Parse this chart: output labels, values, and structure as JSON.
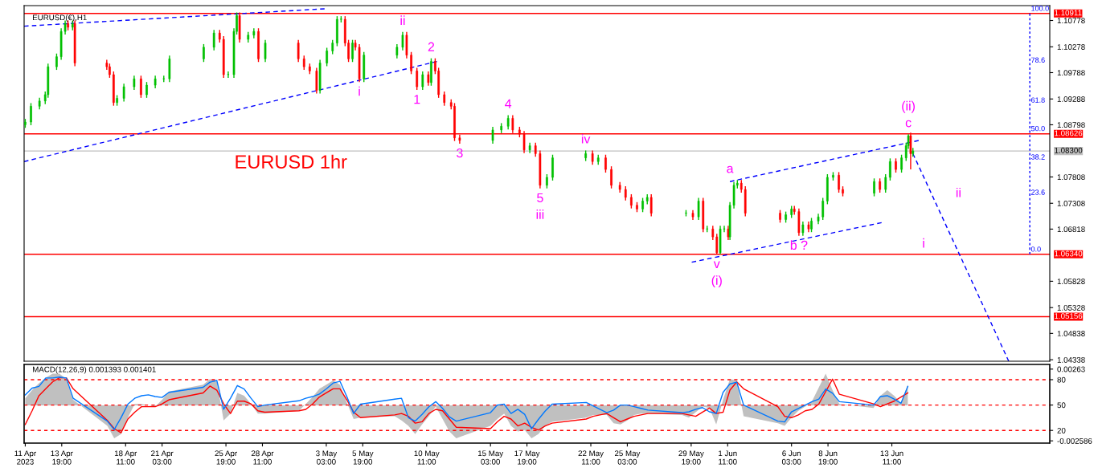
{
  "chart_data": [
    {
      "type": "candlestick",
      "title": "EURUSD(€),H1",
      "tick_labels": "y",
      "xlim": [
        "2023-04-11T01:00",
        "2023-06-25T00:00"
      ],
      "ylim": [
        1.0431,
        1.1106
      ],
      "yticks": [
        1.10778,
        1.10278,
        1.09788,
        1.09288,
        1.08798,
        1.07808,
        1.07308,
        1.06818,
        1.05828,
        1.05328,
        1.04838,
        1.04338
      ],
      "x": [
        "2023-04-11T03:00",
        "2023-04-11T13:00",
        "2023-04-12T04:00",
        "2023-04-12T14:00",
        "2023-04-12T19:00",
        "2023-04-13T10:00",
        "2023-04-13T18:00",
        "2023-04-14T01:00",
        "2023-04-14T06:00",
        "2023-04-14T14:00",
        "2023-04-14T18:00",
        "2023-04-17T02:00",
        "2023-04-17T07:00",
        "2023-04-17T14:00",
        "2023-04-17T20:00",
        "2023-04-18T08:00",
        "2023-04-19T02:00",
        "2023-04-19T14:00",
        "2023-04-20T00:00",
        "2023-04-20T15:00",
        "2023-04-21T06:00",
        "2023-04-21T16:00",
        "2023-04-24T04:00",
        "2023-04-24T22:00",
        "2023-04-25T08:00",
        "2023-04-25T15:00",
        "2023-04-25T23:00",
        "2023-04-26T09:00",
        "2023-04-26T14:00",
        "2023-04-26T19:00",
        "2023-04-27T10:00",
        "2023-04-27T20:00",
        "2023-04-28T04:00",
        "2023-04-28T16:00",
        "2023-05-01T02:00",
        "2023-05-01T12:00",
        "2023-05-01T22:00",
        "2023-05-02T10:00",
        "2023-05-02T16:00",
        "2023-05-03T04:00",
        "2023-05-03T14:00",
        "2023-05-03T22:00",
        "2023-05-04T05:00",
        "2023-05-04T12:00",
        "2023-05-04T18:00",
        "2023-05-05T01:00",
        "2023-05-05T06:00",
        "2023-05-05T13:00",
        "2023-05-05T21:00",
        "2023-05-08T07:00",
        "2023-05-08T17:00",
        "2023-05-09T00:00",
        "2023-05-09T08:00",
        "2023-05-09T18:00",
        "2023-05-10T04:00",
        "2023-05-10T14:00",
        "2023-05-10T19:00",
        "2023-05-11T02:00",
        "2023-05-11T08:00",
        "2023-05-11T18:00",
        "2023-05-12T06:00",
        "2023-05-12T12:00",
        "2023-05-12T21:00",
        "2023-05-15T07:00",
        "2023-05-15T22:00",
        "2023-05-16T10:00",
        "2023-05-16T18:00",
        "2023-05-17T06:00",
        "2023-05-17T14:00",
        "2023-05-18T00:00",
        "2023-05-18T10:00",
        "2023-05-18T18:00",
        "2023-05-19T06:00",
        "2023-05-19T16:00",
        "2023-05-22T02:00",
        "2023-05-22T14:00",
        "2023-05-23T00:00",
        "2023-05-23T13:00",
        "2023-05-23T23:00",
        "2023-05-24T14:00",
        "2023-05-25T00:00",
        "2023-05-25T10:00",
        "2023-05-25T20:00",
        "2023-05-26T06:00",
        "2023-05-26T14:00",
        "2023-05-26T21:00",
        "2023-05-29T10:00",
        "2023-05-29T22:00",
        "2023-05-30T08:00",
        "2023-05-30T16:00",
        "2023-05-30T23:00",
        "2023-05-31T09:00",
        "2023-05-31T16:00",
        "2023-05-31T22:00",
        "2023-06-01T05:00",
        "2023-06-01T12:00",
        "2023-06-01T15:00",
        "2023-06-01T22:00",
        "2023-06-02T04:00",
        "2023-06-02T11:00",
        "2023-06-02T18:00",
        "2023-06-05T07:00",
        "2023-06-05T17:00",
        "2023-06-06T03:00",
        "2023-06-06T08:00",
        "2023-06-06T16:00",
        "2023-06-06T23:00",
        "2023-06-07T09:00",
        "2023-06-07T14:00",
        "2023-06-08T02:00",
        "2023-06-08T10:00",
        "2023-06-08T18:00",
        "2023-06-09T04:00",
        "2023-06-09T14:00",
        "2023-06-09T21:00",
        "2023-06-12T04:00",
        "2023-06-12T14:00",
        "2023-06-13T00:00",
        "2023-06-13T08:00",
        "2023-06-13T18:00",
        "2023-06-14T04:00",
        "2023-06-14T12:00",
        "2023-06-14T16:00",
        "2023-06-14T20:00",
        "2023-06-15T00:00"
      ],
      "ohlc": [
        [
          1.088,
          1.0891,
          1.0874,
          1.0885
        ],
        [
          1.0885,
          1.0921,
          1.0879,
          1.0915
        ],
        [
          1.0915,
          1.0931,
          1.0909,
          1.0925
        ],
        [
          1.0925,
          1.0943,
          1.0919,
          1.0937
        ],
        [
          1.0937,
          1.0996,
          1.0931,
          1.099
        ],
        [
          1.099,
          1.1015,
          1.0984,
          1.1009
        ],
        [
          1.1009,
          1.1063,
          1.1003,
          1.1057
        ],
        [
          1.1057,
          1.1078,
          1.1051,
          1.1072
        ],
        [
          1.1072,
          1.1078,
          1.1059,
          1.1065
        ],
        [
          1.1065,
          1.1078,
          1.1059,
          1.1072
        ],
        [
          1.1072,
          1.1078,
          1.0991,
          1.0997
        ],
        [
          1.0997,
          1.1003,
          1.0984,
          1.099
        ],
        [
          1.099,
          1.0996,
          1.0969,
          1.0975
        ],
        [
          1.0975,
          1.0981,
          1.0916,
          1.0922
        ],
        [
          1.0922,
          1.0936,
          1.0916,
          1.093
        ],
        [
          1.093,
          1.0958,
          1.0924,
          1.0952
        ],
        [
          1.0952,
          1.0973,
          1.0946,
          1.0967
        ],
        [
          1.0967,
          1.0973,
          1.0931,
          1.0937
        ],
        [
          1.0937,
          1.0961,
          1.0931,
          1.0955
        ],
        [
          1.0955,
          1.0973,
          1.0949,
          1.0967
        ],
        [
          1.0967,
          1.0973,
          1.0961,
          1.0967
        ],
        [
          1.0967,
          1.1011,
          1.0961,
          1.1005
        ],
        [
          1.1005,
          1.1033,
          1.0999,
          1.1027
        ],
        [
          1.1027,
          1.106,
          1.1021,
          1.1054
        ],
        [
          1.1054,
          1.106,
          1.1036,
          1.1042
        ],
        [
          1.1042,
          1.1048,
          1.0969,
          1.0975
        ],
        [
          1.0975,
          1.0981,
          1.0969,
          1.0975
        ],
        [
          1.0975,
          1.1063,
          1.0969,
          1.1057
        ],
        [
          1.1057,
          1.1093,
          1.1051,
          1.1087
        ],
        [
          1.1087,
          1.1093,
          1.1036,
          1.1042
        ],
        [
          1.1042,
          1.1056,
          1.1036,
          1.105
        ],
        [
          1.105,
          1.1063,
          1.1044,
          1.1057
        ],
        [
          1.1057,
          1.1063,
          1.0999,
          1.1005
        ],
        [
          1.1005,
          1.1041,
          1.0999,
          1.1035
        ],
        [
          1.1035,
          1.1041,
          1.0999,
          1.1005
        ],
        [
          1.1005,
          1.1011,
          1.0984,
          1.099
        ],
        [
          1.099,
          1.0996,
          1.0976,
          1.0982
        ],
        [
          1.0982,
          1.0988,
          1.0939,
          1.0945
        ],
        [
          1.0945,
          1.1003,
          1.0939,
          1.0997
        ],
        [
          1.0997,
          1.1026,
          1.0991,
          1.102
        ],
        [
          1.102,
          1.1041,
          1.1014,
          1.1035
        ],
        [
          1.1035,
          1.1086,
          1.1029,
          1.108
        ],
        [
          1.108,
          1.1086,
          1.1074,
          1.108
        ],
        [
          1.108,
          1.1086,
          1.1029,
          1.1035
        ],
        [
          1.1035,
          1.1041,
          1.0999,
          1.1005
        ],
        [
          1.1005,
          1.1041,
          1.0999,
          1.1035
        ],
        [
          1.1035,
          1.1041,
          1.1021,
          1.1027
        ],
        [
          1.1027,
          1.1033,
          1.0961,
          1.0967
        ],
        [
          1.0967,
          1.1018,
          1.0961,
          1.1012
        ],
        [
          1.1012,
          1.1033,
          1.1006,
          1.1027
        ],
        [
          1.1027,
          1.1056,
          1.1021,
          1.105
        ],
        [
          1.105,
          1.1056,
          1.1006,
          1.1012
        ],
        [
          1.1012,
          1.1018,
          1.0976,
          1.0982
        ],
        [
          1.0982,
          1.0988,
          1.0946,
          1.0952
        ],
        [
          1.0952,
          1.0981,
          1.0946,
          1.0975
        ],
        [
          1.0975,
          1.0981,
          1.0954,
          1.096
        ],
        [
          1.096,
          1.1006,
          1.0954,
          1.1
        ],
        [
          1.1,
          1.1006,
          1.0976,
          1.0982
        ],
        [
          1.0982,
          1.0988,
          1.0931,
          1.0937
        ],
        [
          1.0937,
          1.0943,
          1.0916,
          1.0922
        ],
        [
          1.0922,
          1.0928,
          1.0909,
          1.0915
        ],
        [
          1.0915,
          1.0921,
          1.0849,
          1.0855
        ],
        [
          1.0855,
          1.0861,
          1.0844,
          1.085
        ],
        [
          1.085,
          1.0876,
          1.0844,
          1.087
        ],
        [
          1.087,
          1.0883,
          1.0864,
          1.0877
        ],
        [
          1.0877,
          1.0898,
          1.0871,
          1.0892
        ],
        [
          1.0892,
          1.0898,
          1.0864,
          1.087
        ],
        [
          1.087,
          1.0876,
          1.0856,
          1.0862
        ],
        [
          1.0862,
          1.0868,
          1.0826,
          1.0832
        ],
        [
          1.0832,
          1.0846,
          1.0826,
          1.084
        ],
        [
          1.084,
          1.0846,
          1.0819,
          1.0825
        ],
        [
          1.0825,
          1.0831,
          1.0759,
          1.0765
        ],
        [
          1.0765,
          1.0786,
          1.0759,
          1.078
        ],
        [
          1.078,
          1.0823,
          1.0774,
          1.0817
        ],
        [
          1.0817,
          1.0831,
          1.0811,
          1.0825
        ],
        [
          1.0825,
          1.0831,
          1.0804,
          1.081
        ],
        [
          1.081,
          1.0823,
          1.0804,
          1.0817
        ],
        [
          1.0817,
          1.0823,
          1.0789,
          1.0795
        ],
        [
          1.0795,
          1.0801,
          1.0759,
          1.0765
        ],
        [
          1.0765,
          1.0771,
          1.0751,
          1.0757
        ],
        [
          1.0757,
          1.0763,
          1.0736,
          1.0742
        ],
        [
          1.0742,
          1.0748,
          1.0721,
          1.0727
        ],
        [
          1.0727,
          1.0733,
          1.0714,
          1.072
        ],
        [
          1.072,
          1.0741,
          1.0714,
          1.0735
        ],
        [
          1.0735,
          1.0748,
          1.0729,
          1.0742
        ],
        [
          1.0742,
          1.0748,
          1.0706,
          1.0712
        ],
        [
          1.0712,
          1.0718,
          1.0706,
          1.0712
        ],
        [
          1.0712,
          1.0718,
          1.0699,
          1.0705
        ],
        [
          1.0705,
          1.0741,
          1.0699,
          1.0735
        ],
        [
          1.0735,
          1.0741,
          1.0676,
          1.0682
        ],
        [
          1.0682,
          1.0688,
          1.0676,
          1.0682
        ],
        [
          1.0682,
          1.0688,
          1.0661,
          1.0667
        ],
        [
          1.0667,
          1.0673,
          1.0634,
          1.0637
        ],
        [
          1.0637,
          1.0688,
          1.0634,
          1.0682
        ],
        [
          1.0682,
          1.0688,
          1.0676,
          1.0682
        ],
        [
          1.0682,
          1.0688,
          1.0661,
          1.0667
        ],
        [
          1.0667,
          1.0733,
          1.0661,
          1.0727
        ],
        [
          1.0727,
          1.0771,
          1.0721,
          1.0765
        ],
        [
          1.0765,
          1.0775,
          1.0759,
          1.0769
        ],
        [
          1.0769,
          1.0775,
          1.0751,
          1.0757
        ],
        [
          1.0757,
          1.0763,
          1.0706,
          1.0712
        ],
        [
          1.0712,
          1.0718,
          1.0694,
          1.07
        ],
        [
          1.07,
          1.0715,
          1.0694,
          1.0709
        ],
        [
          1.0709,
          1.0726,
          1.0703,
          1.072
        ],
        [
          1.072,
          1.0726,
          1.0709,
          1.0715
        ],
        [
          1.0715,
          1.0721,
          1.0669,
          1.0675
        ],
        [
          1.0675,
          1.0696,
          1.0669,
          1.069
        ],
        [
          1.069,
          1.0696,
          1.0676,
          1.0682
        ],
        [
          1.0682,
          1.0703,
          1.0676,
          1.0697
        ],
        [
          1.0697,
          1.0711,
          1.0691,
          1.0705
        ],
        [
          1.0705,
          1.0741,
          1.0699,
          1.0735
        ],
        [
          1.0735,
          1.0786,
          1.0729,
          1.078
        ],
        [
          1.078,
          1.079,
          1.0774,
          1.0784
        ],
        [
          1.0784,
          1.079,
          1.0751,
          1.0757
        ],
        [
          1.0757,
          1.0763,
          1.0744,
          1.075
        ],
        [
          1.075,
          1.0778,
          1.0744,
          1.0772
        ],
        [
          1.0772,
          1.0778,
          1.0751,
          1.0757
        ],
        [
          1.0757,
          1.0786,
          1.0751,
          1.078
        ],
        [
          1.078,
          1.0816,
          1.0774,
          1.081
        ],
        [
          1.081,
          1.0816,
          1.0789,
          1.0795
        ],
        [
          1.0795,
          1.0823,
          1.0789,
          1.0817
        ],
        [
          1.0817,
          1.0846,
          1.0811,
          1.084
        ],
        [
          1.084,
          1.0862,
          1.0834,
          1.0859
        ],
        [
          1.0859,
          1.0865,
          1.0795,
          1.0825
        ],
        [
          1.0825,
          1.0836,
          1.0819,
          1.083
        ]
      ],
      "colors": [
        "#00c000",
        "#00c000",
        "#00c000",
        "#00c000",
        "#00c000",
        "#00c000",
        "#00c000",
        "#00c000",
        "#ff0000",
        "#00c000",
        "#ff0000",
        "#ff0000",
        "#ff0000",
        "#ff0000",
        "#00c000",
        "#00c000",
        "#00c000",
        "#ff0000",
        "#00c000",
        "#00c000",
        "#00c000",
        "#00c000",
        "#00c000",
        "#00c000",
        "#ff0000",
        "#ff0000",
        "#00c000",
        "#00c000",
        "#00c000",
        "#ff0000",
        "#00c000",
        "#00c000",
        "#ff0000",
        "#00c000",
        "#ff0000",
        "#ff0000",
        "#ff0000",
        "#ff0000",
        "#00c000",
        "#00c000",
        "#00c000",
        "#00c000",
        "#00c000",
        "#ff0000",
        "#ff0000",
        "#00c000",
        "#ff0000",
        "#ff0000",
        "#00c000",
        "#00c000",
        "#00c000",
        "#ff0000",
        "#ff0000",
        "#ff0000",
        "#00c000",
        "#ff0000",
        "#00c000",
        "#ff0000",
        "#ff0000",
        "#ff0000",
        "#ff0000",
        "#ff0000",
        "#ff0000",
        "#00c000",
        "#00c000",
        "#00c000",
        "#ff0000",
        "#ff0000",
        "#ff0000",
        "#00c000",
        "#ff0000",
        "#ff0000",
        "#00c000",
        "#00c000",
        "#00c000",
        "#ff0000",
        "#00c000",
        "#ff0000",
        "#ff0000",
        "#ff0000",
        "#ff0000",
        "#ff0000",
        "#ff0000",
        "#00c000",
        "#00c000",
        "#ff0000",
        "#00c000",
        "#ff0000",
        "#00c000",
        "#ff0000",
        "#00c000",
        "#ff0000",
        "#ff0000",
        "#00c000",
        "#00c000",
        "#ff0000",
        "#00c000",
        "#00c000",
        "#00c000",
        "#ff0000",
        "#ff0000",
        "#ff0000",
        "#00c000",
        "#00c000",
        "#ff0000",
        "#ff0000",
        "#00c000",
        "#ff0000",
        "#00c000",
        "#00c000",
        "#00c000",
        "#00c000",
        "#00c000",
        "#ff0000",
        "#ff0000",
        "#00c000",
        "#ff0000",
        "#00c000",
        "#00c000",
        "#ff0000",
        "#00c000",
        "#00c000",
        "#00c000",
        "#ff0000",
        "#00c000"
      ],
      "series": [
        {
          "type": "line",
          "color": "#0000ff",
          "line_style": "dashed",
          "x": [
            "2023-04-11T01:00",
            "2023-05-03T00:00"
          ],
          "values": [
            1.1067,
            1.11
          ]
        },
        {
          "type": "line",
          "color": "#0000ff",
          "line_style": "dashed",
          "x": [
            "2023-04-11T01:00",
            "2023-05-11T05:00"
          ],
          "values": [
            1.081,
            1.1
          ]
        },
        {
          "type": "line",
          "color": "#0000ff",
          "line_style": "dashed",
          "x": [
            "2023-06-01T15:00",
            "2023-06-15T10:00"
          ],
          "values": [
            1.0772,
            1.085
          ]
        },
        {
          "type": "line",
          "color": "#0000ff",
          "line_style": "dashed",
          "x": [
            "2023-05-29T20:00",
            "2023-06-12T17:00"
          ],
          "values": [
            1.0619,
            1.0694
          ]
        },
        {
          "type": "line",
          "color": "#0000ff",
          "line_style": "dashed",
          "x": [
            "2023-06-15T00:00",
            "2023-06-22T00:00"
          ],
          "values": [
            1.0825,
            1.0431
          ]
        },
        {
          "type": "line",
          "color": "#0000ff",
          "line_style": "dotted",
          "x": [
            "2023-06-23T13:00",
            "2023-06-23T13:00"
          ],
          "values": [
            1.0634,
            1.1091
          ]
        }
      ],
      "ref_lines": [
        {
          "axis": "y",
          "value": 1.10911,
          "label": "1.10911",
          "color": "#ff0000"
        },
        {
          "axis": "y",
          "value": 1.08626,
          "label": "1.08626",
          "color": "#ff0000"
        },
        {
          "axis": "y",
          "value": 1.083,
          "label": "1.08300",
          "color": "#c0c0c0"
        },
        {
          "axis": "y",
          "value": 1.0634,
          "label": "1.06340",
          "color": "#ff0000"
        },
        {
          "axis": "y",
          "value": 1.05156,
          "label": "1.05156",
          "color": "#ff0000"
        }
      ],
      "annotations": [
        "EURUSD 1hr",
        "ii",
        "i",
        {
          "text": "ii",
          "x": "2023-05-08T17:00",
          "y": 1.1056
        },
        {
          "text": "i",
          "x": "2023-05-05T13:00",
          "y": 1.0961
        },
        {
          "text": "2",
          "x": "2023-05-10T19:00",
          "y": 1.1006
        },
        {
          "text": "1",
          "x": "2023-05-09T18:00",
          "y": 1.0946
        },
        {
          "text": "4",
          "x": "2023-05-16T10:00",
          "y": 1.0898
        },
        {
          "text": "3",
          "x": "2023-05-12T21:00",
          "y": 1.0844
        },
        {
          "text": "iv",
          "x": "2023-05-22T02:00",
          "y": 1.0831
        },
        {
          "text": "5",
          "x": "2023-05-18T18:00",
          "y": 1.0759
        },
        {
          "text": "iii",
          "x": "2023-05-18T18:00",
          "y": 1.0759
        },
        {
          "text": "a",
          "x": "2023-06-01T15:00",
          "y": 1.0775
        },
        {
          "text": "v",
          "x": "2023-05-31T16:00",
          "y": 1.0634
        },
        {
          "text": "(i)",
          "x": "2023-05-31T16:00",
          "y": 1.0634
        },
        {
          "text": "b ?",
          "x": "2023-06-06T16:00",
          "y": 1.0669
        },
        {
          "text": "c",
          "x": "2023-06-14T16:00",
          "y": 1.0862
        },
        {
          "text": "(ii)",
          "x": "2023-06-14T16:00",
          "y": 1.0862
        },
        {
          "text": "100.0",
          "x": "2023-06-23T13:00",
          "y": 1.1091
        },
        {
          "text": "78.6",
          "x": "2023-06-23T13:00",
          "y": 1.0993
        },
        {
          "text": "61.8",
          "x": "2023-06-23T13:00",
          "y": 1.0917
        },
        {
          "text": "50.0",
          "x": "2023-06-23T13:00",
          "y": 1.0863
        },
        {
          "text": "38.2",
          "x": "2023-06-23T13:00",
          "y": 1.0809
        },
        {
          "text": "23.6",
          "x": "2023-06-23T13:00",
          "y": 1.0742
        },
        {
          "text": "0.0",
          "x": "2023-06-23T13:00",
          "y": 1.0634
        }
      ]
    },
    {
      "type": "line",
      "title": "MACD(12,26,9) 0.001393 0.001401",
      "xlim": [
        "2023-04-11T01:00",
        "2023-06-25T00:00"
      ],
      "xticks": [
        {
          "value": "2023-04-11T03:00",
          "label": "11 Apr 2023"
        },
        {
          "value": "2023-04-13T19:00",
          "label": "13 Apr 19:00"
        },
        {
          "value": "2023-04-18T11:00",
          "label": "18 Apr 11:00"
        },
        {
          "value": "2023-04-21T03:00",
          "label": "21 Apr 03:00"
        },
        {
          "value": "2023-04-25T19:00",
          "label": "25 Apr 19:00"
        },
        {
          "value": "2023-04-28T11:00",
          "label": "28 Apr 11:00"
        },
        {
          "value": "2023-05-03T03:00",
          "label": "3 May 03:00"
        },
        {
          "value": "2023-05-05T19:00",
          "label": "5 May 19:00"
        },
        {
          "value": "2023-05-10T11:00",
          "label": "10 May 11:00"
        },
        {
          "value": "2023-05-15T03:00",
          "label": "15 May 03:00"
        },
        {
          "value": "2023-05-17T19:00",
          "label": "17 May 19:00"
        },
        {
          "value": "2023-05-22T11:00",
          "label": "22 May 11:00"
        },
        {
          "value": "2023-05-25T03:00",
          "label": "25 May 03:00"
        },
        {
          "value": "2023-05-29T19:00",
          "label": "29 May 19:00"
        },
        {
          "value": "2023-06-01T11:00",
          "label": "1 Jun 11:00"
        },
        {
          "value": "2023-06-06T03:00",
          "label": "6 Jun 03:00"
        },
        {
          "value": "2023-06-08T19:00",
          "label": "8 Jun 19:00"
        },
        {
          "value": "2023-06-13T11:00",
          "label": "13 Jun 11:00"
        }
      ],
      "ylim": [
        -0.00275,
        0.00297
      ],
      "yticks": [
        0.00263,
        -0.002586
      ],
      "y2lim": [
        5,
        98
      ],
      "y2ticks": [
        80,
        50,
        20
      ],
      "x": [
        "2023-04-11T03:00",
        "2023-04-11T15:00",
        "2023-04-12T03:00",
        "2023-04-12T15:00",
        "2023-04-13T03:00",
        "2023-04-13T15:00",
        "2023-04-14T03:00",
        "2023-04-14T15:00",
        "2023-04-17T03:00",
        "2023-04-17T15:00",
        "2023-04-18T03:00",
        "2023-04-18T15:00",
        "2023-04-19T03:00",
        "2023-04-19T15:00",
        "2023-04-20T03:00",
        "2023-04-20T15:00",
        "2023-04-21T03:00",
        "2023-04-21T15:00",
        "2023-04-24T03:00",
        "2023-04-24T15:00",
        "2023-04-25T03:00",
        "2023-04-25T15:00",
        "2023-04-26T03:00",
        "2023-04-26T15:00",
        "2023-04-27T03:00",
        "2023-04-27T15:00",
        "2023-04-28T03:00",
        "2023-04-28T15:00",
        "2023-05-01T03:00",
        "2023-05-01T15:00",
        "2023-05-02T03:00",
        "2023-05-02T15:00",
        "2023-05-03T03:00",
        "2023-05-03T15:00",
        "2023-05-04T03:00",
        "2023-05-04T15:00",
        "2023-05-05T03:00",
        "2023-05-05T15:00",
        "2023-05-08T03:00",
        "2023-05-08T15:00",
        "2023-05-09T03:00",
        "2023-05-09T15:00",
        "2023-05-10T03:00",
        "2023-05-10T15:00",
        "2023-05-11T03:00",
        "2023-05-11T15:00",
        "2023-05-12T03:00",
        "2023-05-12T15:00",
        "2023-05-15T03:00",
        "2023-05-15T15:00",
        "2023-05-16T03:00",
        "2023-05-16T15:00",
        "2023-05-17T03:00",
        "2023-05-17T15:00",
        "2023-05-18T03:00",
        "2023-05-18T15:00",
        "2023-05-19T03:00",
        "2023-05-19T15:00",
        "2023-05-22T03:00",
        "2023-05-22T15:00",
        "2023-05-23T03:00",
        "2023-05-23T15:00",
        "2023-05-24T03:00",
        "2023-05-24T15:00",
        "2023-05-25T03:00",
        "2023-05-25T15:00",
        "2023-05-26T03:00",
        "2023-05-26T15:00",
        "2023-05-29T03:00",
        "2023-05-29T15:00",
        "2023-05-30T03:00",
        "2023-05-30T15:00",
        "2023-05-31T03:00",
        "2023-05-31T15:00",
        "2023-06-01T03:00",
        "2023-06-01T15:00",
        "2023-06-02T03:00",
        "2023-06-02T15:00",
        "2023-06-05T03:00",
        "2023-06-05T15:00",
        "2023-06-06T03:00",
        "2023-06-06T15:00",
        "2023-06-07T03:00",
        "2023-06-07T15:00",
        "2023-06-08T03:00",
        "2023-06-08T15:00",
        "2023-06-09T03:00",
        "2023-06-09T15:00",
        "2023-06-12T03:00",
        "2023-06-12T15:00",
        "2023-06-13T03:00",
        "2023-06-13T15:00",
        "2023-06-14T03:00",
        "2023-06-14T15:00"
      ],
      "series": [
        {
          "type": "area",
          "color": "#c0c0c0",
          "values": [
            0.0005,
            0.0011,
            0.0016,
            0.002,
            0.0023,
            0.0023,
            0.0019,
            0.0004,
            -0.0015,
            -0.0024,
            -0.0021,
            -0.0009,
            0.0001,
            0.0001,
            0.0,
            -0.0001,
            0.0004,
            0.001,
            0.0015,
            0.0019,
            0.0017,
            -0.0011,
            -0.0006,
            0.0009,
            0.0007,
            0.0001,
            -0.0006,
            -0.0006,
            -0.0004,
            0.0001,
            0.0006,
            0.0012,
            0.0015,
            0.0018,
            0.0015,
            0.0002,
            -0.001,
            -0.0009,
            -0.0008,
            -0.0011,
            -0.0015,
            -0.0021,
            -0.0014,
            -0.0008,
            -0.0001,
            -0.001,
            -0.0019,
            -0.0024,
            -0.0015,
            -0.001,
            -0.0006,
            -0.0015,
            -0.0019,
            -0.0018,
            -0.0024,
            -0.0021,
            -0.0015,
            -0.0012,
            -0.0009,
            -0.0007,
            -0.0007,
            -0.0007,
            -0.0013,
            -0.0014,
            -0.0011,
            -0.0007,
            -0.0006,
            -0.0006,
            -0.0007,
            -0.0009,
            -0.0005,
            -0.0001,
            -0.0002,
            -0.0014,
            0.0004,
            0.0019,
            0.0018,
            -0.0008,
            -0.0013,
            -0.0015,
            -0.0009,
            -0.0004,
            -0.0001,
            0.0003,
            0.0013,
            0.0023,
            0.0011,
            0.0001,
            -0.0002,
            0.0007,
            0.0011,
            0.0007,
            0.0002,
            0.0015
          ]
        },
        {
          "type": "line",
          "color": "#0078ff",
          "axis": "y2",
          "values": [
            62,
            70,
            72,
            82,
            82,
            83,
            82,
            58,
            31,
            21,
            35,
            51,
            58,
            61,
            62,
            60,
            59,
            65,
            71,
            77,
            79,
            45,
            58,
            73,
            69,
            58,
            48,
            50,
            55,
            58,
            60,
            63,
            69,
            76,
            78,
            60,
            40,
            51,
            57,
            58,
            35,
            31,
            39,
            48,
            54,
            46,
            36,
            31,
            41,
            50,
            51,
            40,
            45,
            39,
            22,
            33,
            43,
            51,
            53,
            49,
            45,
            41,
            44,
            50,
            50,
            48,
            46,
            44,
            41,
            42,
            45,
            47,
            42,
            40,
            65,
            75,
            77,
            50,
            31,
            30,
            42,
            46,
            50,
            54,
            57,
            69,
            64,
            54,
            50,
            60,
            61,
            57,
            52,
            72
          ]
        },
        {
          "type": "line",
          "color": "#ff0000",
          "values": [
            -0.0014,
            -0.0004,
            0.0007,
            0.0012,
            0.0017,
            0.002,
            0.002,
            0.0012,
            -0.0011,
            -0.0017,
            -0.002,
            -0.001,
            -0.0005,
            -0.0001,
            -0.0001,
            -0.0001,
            0.0001,
            0.0004,
            0.0009,
            0.0014,
            0.0011,
            0.0001,
            -0.0006,
            0.0003,
            0.0003,
            0.0001,
            -0.0004,
            -0.0005,
            -0.0004,
            -0.0003,
            0.0001,
            0.0006,
            0.0009,
            0.0012,
            0.0012,
            0.0004,
            -0.0005,
            -0.0009,
            -0.0007,
            -0.0006,
            -0.0008,
            -0.0013,
            -0.0012,
            -0.0006,
            -0.0003,
            -0.0004,
            -0.001,
            -0.0016,
            -0.0017,
            -0.0012,
            -0.0008,
            -0.001,
            -0.0015,
            -0.0013,
            -0.0016,
            -0.0018,
            -0.0015,
            -0.0013,
            -0.001,
            -0.0008,
            -0.0007,
            -0.0006,
            -0.0009,
            -0.0012,
            -0.001,
            -0.0008,
            -0.0007,
            -0.0006,
            -0.0006,
            -0.0007,
            -0.0008,
            -0.0005,
            -0.0002,
            -0.0006,
            -0.0005,
            0.0011,
            0.0017,
            0.0012,
            -0.0001,
            -0.0008,
            -0.0009,
            -0.0007,
            -0.0004,
            -0.0003,
            0.0001,
            0.001,
            0.0019,
            0.0008,
            0.0001,
            -0.0001,
            0.0001,
            0.0003,
            0.0006,
            0.0009
          ]
        }
      ],
      "ref_lines": [
        {
          "axis": "y2",
          "value": 80,
          "color": "#ff0000",
          "line_style": "dashed"
        },
        {
          "axis": "y2",
          "value": 50,
          "color": "#ff0000",
          "line_style": "dashed"
        },
        {
          "axis": "y2",
          "value": 20,
          "color": "#ff0000",
          "line_style": "dashed"
        }
      ]
    }
  ]
}
